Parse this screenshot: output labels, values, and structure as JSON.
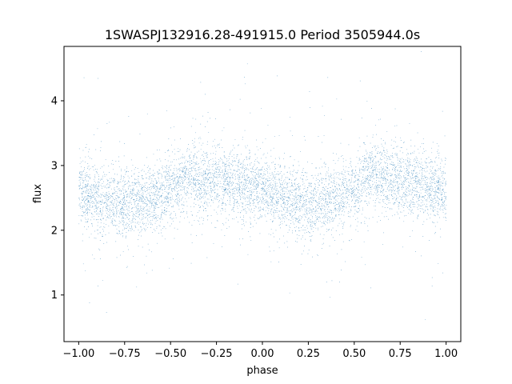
{
  "chart_data": {
    "type": "scatter",
    "title": "1SWASPJ132916.28-491915.0 Period 3505944.0s",
    "xlabel": "phase",
    "ylabel": "flux",
    "xlim": [
      -1.08,
      1.08
    ],
    "ylim": [
      0.28,
      4.84
    ],
    "xticks": [
      -1.0,
      -0.75,
      -0.5,
      -0.25,
      0.0,
      0.25,
      0.5,
      0.75,
      1.0
    ],
    "xtick_labels": [
      "−1.00",
      "−0.75",
      "−0.50",
      "−0.25",
      "0.00",
      "0.25",
      "0.50",
      "0.75",
      "1.00"
    ],
    "yticks": [
      1,
      2,
      3,
      4
    ],
    "ytick_labels": [
      "1",
      "2",
      "3",
      "4"
    ],
    "grid": false,
    "marker_color": "#1f77b4",
    "series": [
      {
        "x": [
          -1.0,
          -0.9,
          -0.8,
          -0.7,
          -0.6,
          -0.5,
          -0.4,
          -0.3,
          -0.2,
          -0.1,
          0.0,
          0.1,
          0.2,
          0.3,
          0.4,
          0.5,
          0.6,
          0.7,
          0.8,
          0.9,
          1.0
        ],
        "values": [
          2.6,
          2.5,
          2.4,
          2.45,
          2.5,
          2.6,
          2.85,
          2.75,
          2.75,
          2.7,
          2.6,
          2.5,
          2.4,
          2.45,
          2.5,
          2.6,
          2.85,
          2.75,
          2.75,
          2.7,
          2.6
        ]
      }
    ]
  }
}
